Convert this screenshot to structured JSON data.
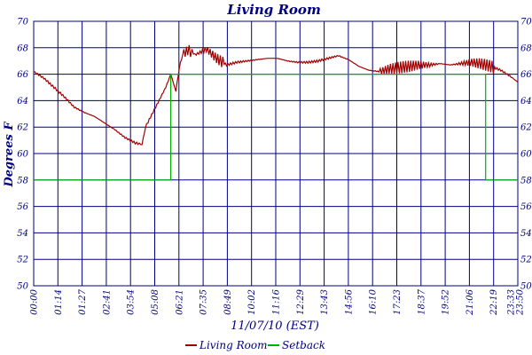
{
  "chart_data": {
    "type": "line",
    "title": "Living Room",
    "xlabel": "11/07/10 (EST)",
    "ylabel": "Degrees F",
    "x_ticks": [
      "00:00",
      "01:14",
      "01:27",
      "02:41",
      "03:54",
      "05:08",
      "06:21",
      "07:35",
      "08:49",
      "10:02",
      "11:16",
      "12:29",
      "13:43",
      "14:56",
      "16:10",
      "17:23",
      "18:37",
      "19:52",
      "21:06",
      "22:19",
      "23:33",
      "23:50"
    ],
    "y_ticks": [
      50,
      52,
      54,
      56,
      58,
      60,
      62,
      64,
      66,
      68,
      70
    ],
    "ylim": [
      50,
      70
    ],
    "grid": true,
    "legend_position": "bottom",
    "series": [
      {
        "name": "Living Room",
        "color": "#a00000",
        "points": [
          [
            "00:00",
            66.2
          ],
          [
            "00:30",
            65.7
          ],
          [
            "01:00",
            65.0
          ],
          [
            "01:30",
            64.3
          ],
          [
            "02:00",
            63.5
          ],
          [
            "02:30",
            63.1
          ],
          [
            "03:00",
            62.8
          ],
          [
            "03:30",
            62.3
          ],
          [
            "04:00",
            61.8
          ],
          [
            "04:30",
            61.2
          ],
          [
            "05:00",
            60.8
          ],
          [
            "05:20",
            60.7
          ],
          [
            "05:30",
            62.0
          ],
          [
            "06:00",
            63.5
          ],
          [
            "06:30",
            65.0
          ],
          [
            "06:45",
            66.0
          ],
          [
            "07:00",
            64.7
          ],
          [
            "07:10",
            66.5
          ],
          [
            "07:20",
            67.5
          ],
          [
            "07:35",
            67.8
          ],
          [
            "08:00",
            67.5
          ],
          [
            "08:30",
            67.9
          ],
          [
            "09:00",
            67.2
          ],
          [
            "09:30",
            66.7
          ],
          [
            "10:00",
            66.9
          ],
          [
            "10:30",
            67.0
          ],
          [
            "11:00",
            67.1
          ],
          [
            "11:30",
            67.2
          ],
          [
            "12:00",
            67.2
          ],
          [
            "12:30",
            67.0
          ],
          [
            "13:00",
            66.9
          ],
          [
            "13:30",
            66.9
          ],
          [
            "14:00",
            67.0
          ],
          [
            "14:30",
            67.2
          ],
          [
            "15:00",
            67.4
          ],
          [
            "15:30",
            67.1
          ],
          [
            "16:00",
            66.6
          ],
          [
            "16:30",
            66.3
          ],
          [
            "17:00",
            66.2
          ],
          [
            "17:30",
            66.4
          ],
          [
            "18:00",
            66.5
          ],
          [
            "18:30",
            66.6
          ],
          [
            "19:00",
            66.7
          ],
          [
            "19:30",
            66.7
          ],
          [
            "20:00",
            66.8
          ],
          [
            "20:30",
            66.7
          ],
          [
            "21:00",
            66.8
          ],
          [
            "21:30",
            66.9
          ],
          [
            "22:00",
            66.8
          ],
          [
            "22:30",
            66.6
          ],
          [
            "23:00",
            66.3
          ],
          [
            "23:30",
            65.8
          ],
          [
            "23:50",
            65.4
          ]
        ]
      },
      {
        "name": "Setback",
        "color": "#00b000",
        "points": [
          [
            "00:00",
            58
          ],
          [
            "06:45",
            58
          ],
          [
            "06:45",
            66
          ],
          [
            "22:15",
            66
          ],
          [
            "22:15",
            58
          ],
          [
            "23:50",
            58
          ]
        ]
      }
    ]
  }
}
